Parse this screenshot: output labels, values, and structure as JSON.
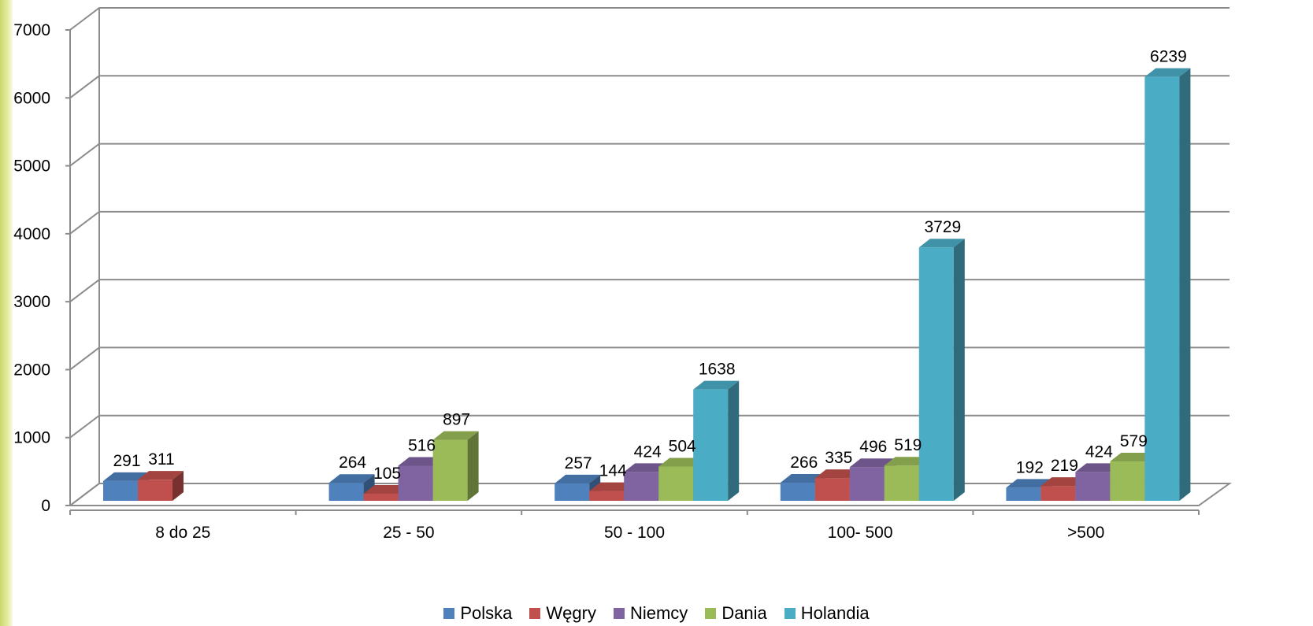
{
  "chart_data": {
    "type": "bar",
    "title": "",
    "xlabel": "",
    "ylabel": "",
    "ylim": [
      0,
      7000
    ],
    "yticks": [
      0,
      1000,
      2000,
      3000,
      4000,
      5000,
      6000,
      7000
    ],
    "ytick_labels": [
      "0",
      "1000",
      "2000",
      "3000",
      "4000",
      "5000",
      "6000",
      "7000"
    ],
    "grid": true,
    "three_d": true,
    "legend_position": "bottom",
    "categories": [
      "8 do 25",
      "25 - 50",
      "50 - 100",
      "100- 500",
      ">500"
    ],
    "series": [
      {
        "name": "Polska",
        "color": "#4f81bd",
        "values": [
          291,
          264,
          257,
          266,
          192
        ]
      },
      {
        "name": "Węgry",
        "color": "#c0504d",
        "values": [
          311,
          105,
          144,
          335,
          219
        ]
      },
      {
        "name": "Niemcy",
        "color": "#8064a2",
        "values": [
          null,
          516,
          424,
          496,
          424
        ]
      },
      {
        "name": "Dania",
        "color": "#9bbb59",
        "values": [
          null,
          897,
          504,
          519,
          579
        ]
      },
      {
        "name": "Holandia",
        "color": "#4bacc6",
        "values": [
          null,
          null,
          1638,
          3729,
          6239
        ]
      }
    ]
  }
}
